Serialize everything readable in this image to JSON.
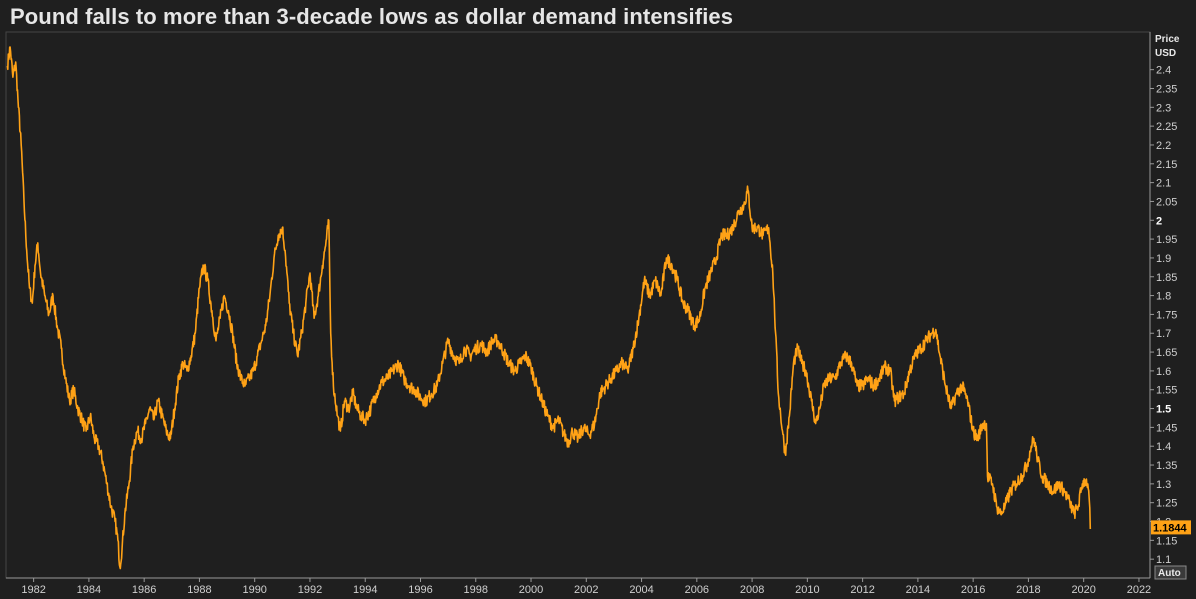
{
  "header": {
    "title": "Pound falls to more than 3-decade lows as dollar demand intensifies"
  },
  "axis": {
    "unit_line1": "Price",
    "unit_line2": "USD",
    "auto_label": "Auto"
  },
  "colors": {
    "background": "#1f1f1f",
    "series": "#ffa216",
    "grid": "#2e2e2e",
    "axis_line": "#9a9a9a",
    "last_value_bg": "#ffa216"
  },
  "chart_data": {
    "type": "line",
    "title": "Pound falls to more than 3-decade lows as dollar demand intensifies",
    "ylabel": "Price USD",
    "xlabel": "",
    "xlim": [
      1981.0,
      2022.4
    ],
    "ylim": [
      1.05,
      2.5
    ],
    "x_ticks": [
      1982,
      1984,
      1986,
      1988,
      1990,
      1992,
      1994,
      1996,
      1998,
      2000,
      2002,
      2004,
      2006,
      2008,
      2010,
      2012,
      2014,
      2016,
      2018,
      2020,
      2022
    ],
    "y_ticks": [
      1.1,
      1.15,
      1.2,
      1.25,
      1.3,
      1.35,
      1.4,
      1.45,
      1.5,
      1.55,
      1.6,
      1.65,
      1.7,
      1.75,
      1.8,
      1.85,
      1.9,
      1.95,
      2.0,
      2.05,
      2.1,
      2.15,
      2.2,
      2.25,
      2.3,
      2.35,
      2.4
    ],
    "y_bold_ticks": [
      1.5,
      2.0
    ],
    "last_value": 1.1844,
    "last_value_label": "1.1844",
    "grid": false,
    "legend": "none",
    "series": [
      {
        "points": [
          [
            1981.05,
            2.41
          ],
          [
            1981.15,
            2.46
          ],
          [
            1981.25,
            2.38
          ],
          [
            1981.35,
            2.42
          ],
          [
            1981.45,
            2.3
          ],
          [
            1981.55,
            2.2
          ],
          [
            1981.65,
            2.05
          ],
          [
            1981.75,
            1.92
          ],
          [
            1981.85,
            1.82
          ],
          [
            1981.95,
            1.78
          ],
          [
            1982.05,
            1.88
          ],
          [
            1982.15,
            1.94
          ],
          [
            1982.25,
            1.86
          ],
          [
            1982.4,
            1.8
          ],
          [
            1982.55,
            1.75
          ],
          [
            1982.7,
            1.8
          ],
          [
            1982.85,
            1.72
          ],
          [
            1983.0,
            1.66
          ],
          [
            1983.15,
            1.58
          ],
          [
            1983.3,
            1.52
          ],
          [
            1983.45,
            1.55
          ],
          [
            1983.6,
            1.5
          ],
          [
            1983.75,
            1.47
          ],
          [
            1983.9,
            1.44
          ],
          [
            1984.05,
            1.48
          ],
          [
            1984.2,
            1.42
          ],
          [
            1984.35,
            1.4
          ],
          [
            1984.5,
            1.36
          ],
          [
            1984.65,
            1.3
          ],
          [
            1984.8,
            1.24
          ],
          [
            1984.95,
            1.2
          ],
          [
            1985.05,
            1.15
          ],
          [
            1985.12,
            1.08
          ],
          [
            1985.2,
            1.13
          ],
          [
            1985.3,
            1.22
          ],
          [
            1985.45,
            1.3
          ],
          [
            1985.6,
            1.4
          ],
          [
            1985.75,
            1.44
          ],
          [
            1985.9,
            1.42
          ],
          [
            1986.05,
            1.46
          ],
          [
            1986.2,
            1.5
          ],
          [
            1986.35,
            1.47
          ],
          [
            1986.5,
            1.52
          ],
          [
            1986.65,
            1.48
          ],
          [
            1986.8,
            1.44
          ],
          [
            1986.95,
            1.42
          ],
          [
            1987.1,
            1.5
          ],
          [
            1987.25,
            1.58
          ],
          [
            1987.4,
            1.62
          ],
          [
            1987.55,
            1.6
          ],
          [
            1987.7,
            1.64
          ],
          [
            1987.85,
            1.7
          ],
          [
            1988.0,
            1.82
          ],
          [
            1988.15,
            1.88
          ],
          [
            1988.3,
            1.84
          ],
          [
            1988.45,
            1.76
          ],
          [
            1988.6,
            1.68
          ],
          [
            1988.75,
            1.74
          ],
          [
            1988.9,
            1.8
          ],
          [
            1989.05,
            1.76
          ],
          [
            1989.2,
            1.7
          ],
          [
            1989.35,
            1.62
          ],
          [
            1989.5,
            1.58
          ],
          [
            1989.65,
            1.56
          ],
          [
            1989.8,
            1.58
          ],
          [
            1989.95,
            1.6
          ],
          [
            1990.1,
            1.64
          ],
          [
            1990.25,
            1.68
          ],
          [
            1990.4,
            1.72
          ],
          [
            1990.55,
            1.8
          ],
          [
            1990.7,
            1.9
          ],
          [
            1990.85,
            1.96
          ],
          [
            1991.0,
            1.98
          ],
          [
            1991.1,
            1.92
          ],
          [
            1991.25,
            1.78
          ],
          [
            1991.4,
            1.7
          ],
          [
            1991.55,
            1.64
          ],
          [
            1991.7,
            1.7
          ],
          [
            1991.85,
            1.78
          ],
          [
            1992.0,
            1.86
          ],
          [
            1992.15,
            1.74
          ],
          [
            1992.3,
            1.8
          ],
          [
            1992.45,
            1.88
          ],
          [
            1992.6,
            1.95
          ],
          [
            1992.68,
            2.0
          ],
          [
            1992.75,
            1.7
          ],
          [
            1992.85,
            1.56
          ],
          [
            1993.0,
            1.48
          ],
          [
            1993.1,
            1.44
          ],
          [
            1993.25,
            1.52
          ],
          [
            1993.4,
            1.5
          ],
          [
            1993.55,
            1.54
          ],
          [
            1993.7,
            1.5
          ],
          [
            1993.85,
            1.48
          ],
          [
            1994.0,
            1.47
          ],
          [
            1994.2,
            1.5
          ],
          [
            1994.4,
            1.54
          ],
          [
            1994.6,
            1.57
          ],
          [
            1994.8,
            1.58
          ],
          [
            1995.0,
            1.6
          ],
          [
            1995.2,
            1.62
          ],
          [
            1995.4,
            1.58
          ],
          [
            1995.6,
            1.56
          ],
          [
            1995.8,
            1.55
          ],
          [
            1996.0,
            1.53
          ],
          [
            1996.2,
            1.52
          ],
          [
            1996.4,
            1.54
          ],
          [
            1996.6,
            1.56
          ],
          [
            1996.8,
            1.62
          ],
          [
            1997.0,
            1.68
          ],
          [
            1997.2,
            1.64
          ],
          [
            1997.4,
            1.62
          ],
          [
            1997.6,
            1.66
          ],
          [
            1997.8,
            1.64
          ],
          [
            1998.0,
            1.66
          ],
          [
            1998.2,
            1.67
          ],
          [
            1998.4,
            1.65
          ],
          [
            1998.6,
            1.68
          ],
          [
            1998.8,
            1.68
          ],
          [
            1999.0,
            1.65
          ],
          [
            1999.2,
            1.62
          ],
          [
            1999.4,
            1.6
          ],
          [
            1999.6,
            1.62
          ],
          [
            1999.8,
            1.64
          ],
          [
            2000.0,
            1.61
          ],
          [
            2000.2,
            1.56
          ],
          [
            2000.4,
            1.52
          ],
          [
            2000.6,
            1.48
          ],
          [
            2000.8,
            1.45
          ],
          [
            2001.0,
            1.47
          ],
          [
            2001.2,
            1.43
          ],
          [
            2001.35,
            1.41
          ],
          [
            2001.5,
            1.44
          ],
          [
            2001.7,
            1.42
          ],
          [
            2001.9,
            1.45
          ],
          [
            2002.1,
            1.43
          ],
          [
            2002.3,
            1.46
          ],
          [
            2002.5,
            1.54
          ],
          [
            2002.7,
            1.56
          ],
          [
            2002.9,
            1.58
          ],
          [
            2003.1,
            1.6
          ],
          [
            2003.3,
            1.62
          ],
          [
            2003.5,
            1.6
          ],
          [
            2003.7,
            1.66
          ],
          [
            2003.9,
            1.74
          ],
          [
            2004.1,
            1.84
          ],
          [
            2004.3,
            1.8
          ],
          [
            2004.5,
            1.84
          ],
          [
            2004.7,
            1.8
          ],
          [
            2004.9,
            1.9
          ],
          [
            2005.1,
            1.88
          ],
          [
            2005.3,
            1.84
          ],
          [
            2005.5,
            1.78
          ],
          [
            2005.7,
            1.76
          ],
          [
            2005.9,
            1.72
          ],
          [
            2006.1,
            1.74
          ],
          [
            2006.3,
            1.82
          ],
          [
            2006.5,
            1.86
          ],
          [
            2006.7,
            1.9
          ],
          [
            2006.9,
            1.96
          ],
          [
            2007.1,
            1.96
          ],
          [
            2007.3,
            1.98
          ],
          [
            2007.5,
            2.02
          ],
          [
            2007.7,
            2.04
          ],
          [
            2007.85,
            2.08
          ],
          [
            2008.0,
            1.98
          ],
          [
            2008.2,
            1.98
          ],
          [
            2008.4,
            1.96
          ],
          [
            2008.6,
            1.98
          ],
          [
            2008.75,
            1.86
          ],
          [
            2008.85,
            1.7
          ],
          [
            2008.95,
            1.54
          ],
          [
            2009.1,
            1.44
          ],
          [
            2009.2,
            1.38
          ],
          [
            2009.35,
            1.48
          ],
          [
            2009.5,
            1.62
          ],
          [
            2009.65,
            1.66
          ],
          [
            2009.8,
            1.62
          ],
          [
            2009.95,
            1.6
          ],
          [
            2010.15,
            1.52
          ],
          [
            2010.3,
            1.46
          ],
          [
            2010.45,
            1.5
          ],
          [
            2010.6,
            1.56
          ],
          [
            2010.8,
            1.58
          ],
          [
            2011.0,
            1.58
          ],
          [
            2011.2,
            1.62
          ],
          [
            2011.4,
            1.64
          ],
          [
            2011.6,
            1.62
          ],
          [
            2011.8,
            1.56
          ],
          [
            2012.0,
            1.56
          ],
          [
            2012.2,
            1.58
          ],
          [
            2012.4,
            1.56
          ],
          [
            2012.6,
            1.58
          ],
          [
            2012.8,
            1.61
          ],
          [
            2013.0,
            1.6
          ],
          [
            2013.15,
            1.52
          ],
          [
            2013.3,
            1.53
          ],
          [
            2013.5,
            1.54
          ],
          [
            2013.7,
            1.6
          ],
          [
            2013.9,
            1.64
          ],
          [
            2014.1,
            1.66
          ],
          [
            2014.3,
            1.68
          ],
          [
            2014.5,
            1.7
          ],
          [
            2014.65,
            1.71
          ],
          [
            2014.8,
            1.64
          ],
          [
            2015.0,
            1.56
          ],
          [
            2015.2,
            1.5
          ],
          [
            2015.4,
            1.54
          ],
          [
            2015.6,
            1.56
          ],
          [
            2015.8,
            1.52
          ],
          [
            2016.0,
            1.44
          ],
          [
            2016.15,
            1.42
          ],
          [
            2016.35,
            1.46
          ],
          [
            2016.48,
            1.46
          ],
          [
            2016.52,
            1.32
          ],
          [
            2016.7,
            1.3
          ],
          [
            2016.85,
            1.24
          ],
          [
            2017.0,
            1.22
          ],
          [
            2017.15,
            1.24
          ],
          [
            2017.35,
            1.28
          ],
          [
            2017.55,
            1.3
          ],
          [
            2017.75,
            1.32
          ],
          [
            2017.95,
            1.35
          ],
          [
            2018.1,
            1.4
          ],
          [
            2018.2,
            1.42
          ],
          [
            2018.35,
            1.36
          ],
          [
            2018.5,
            1.32
          ],
          [
            2018.7,
            1.3
          ],
          [
            2018.9,
            1.28
          ],
          [
            2019.1,
            1.3
          ],
          [
            2019.3,
            1.28
          ],
          [
            2019.5,
            1.25
          ],
          [
            2019.65,
            1.22
          ],
          [
            2019.8,
            1.24
          ],
          [
            2019.95,
            1.3
          ],
          [
            2020.05,
            1.31
          ],
          [
            2020.15,
            1.3
          ],
          [
            2020.2,
            1.26
          ],
          [
            2020.24,
            1.18
          ]
        ]
      }
    ]
  }
}
